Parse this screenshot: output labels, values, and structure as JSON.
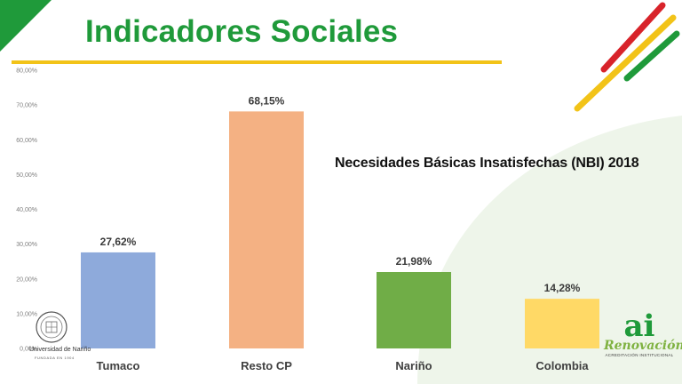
{
  "slide": {
    "title": "Indicadores Sociales"
  },
  "colors": {
    "title_green": "#1f9a3a",
    "rule_yellow": "#f2c318",
    "stripe_red": "#d8232a",
    "stripe_yellow": "#f2c318",
    "stripe_green": "#1f9a3a"
  },
  "branding": {
    "university_name": "Universidad de Nariño",
    "university_caption": "FUNDADA EN 1904",
    "logo_letters": "ai",
    "logo_name": "Renovación",
    "logo_subtitle": "ACREDITACIÓN INSTITUCIONAL"
  },
  "chart_data": {
    "type": "bar",
    "title": "Necesidades Básicas Insatisfechas (NBI) 2018",
    "xlabel": "",
    "ylabel": "",
    "categories": [
      "Tumaco",
      "Resto CP",
      "Nariño",
      "Colombia"
    ],
    "values": [
      27.62,
      68.15,
      21.98,
      14.28
    ],
    "value_labels": [
      "27,62%",
      "68,15%",
      "21,98%",
      "14,28%"
    ],
    "bar_colors": [
      "#8eaadb",
      "#f4b183",
      "#70ad47",
      "#ffd966"
    ],
    "ylim": [
      0,
      80
    ],
    "y_ticks": [
      0,
      10,
      20,
      30,
      40,
      50,
      60,
      70,
      80
    ],
    "y_tick_labels": [
      "0,00%",
      "10,00%",
      "20,00%",
      "30,00%",
      "40,00%",
      "50,00%",
      "60,00%",
      "70,00%",
      "80,00%"
    ],
    "grid": false,
    "legend": "none"
  }
}
